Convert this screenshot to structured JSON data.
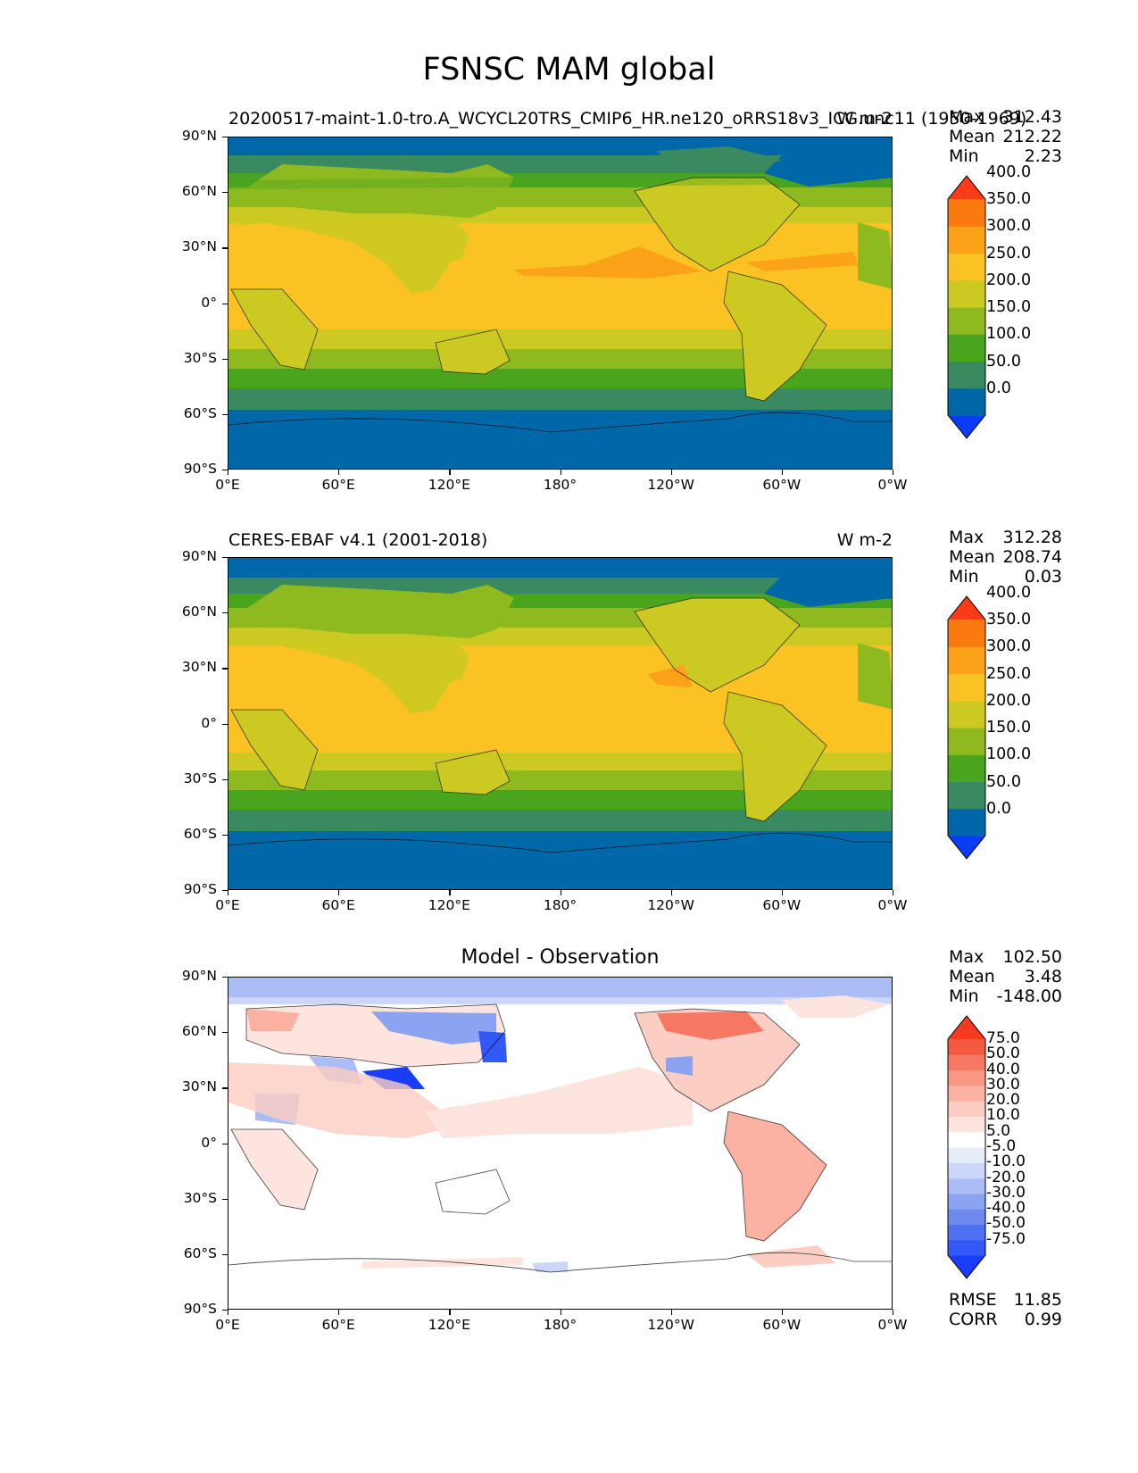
{
  "figure_title": "FSNSC MAM global",
  "map_common": {
    "y_ticks": [
      "90°N",
      "60°N",
      "30°N",
      "0°",
      "30°S",
      "60°S",
      "90°S"
    ],
    "x_ticks": [
      "0°E",
      "60°E",
      "120°E",
      "180°",
      "120°W",
      "60°W",
      "0°W"
    ]
  },
  "panels": [
    {
      "id": "model",
      "title_left": "20200517-maint-1.0-tro.A_WCYCL20TRS_CMIP6_HR.ne120_oRRS18v3_ICG.unc11 (1950-1969)",
      "title_right": "W m-2",
      "stats": [
        {
          "label": "Max",
          "value": "312.43"
        },
        {
          "label": "Mean",
          "value": "212.22"
        },
        {
          "label": "Min",
          "value": "2.23"
        }
      ],
      "colorbar": {
        "colors": [
          "#0a3cfa",
          "#0068a8",
          "#398a60",
          "#4ba41e",
          "#8eb91f",
          "#ccca22",
          "#fbc223",
          "#fba218",
          "#fb7a10",
          "#fc3c18"
        ],
        "labels": [
          "0.0",
          "50.0",
          "100.0",
          "150.0",
          "200.0",
          "250.0",
          "300.0",
          "350.0",
          "400.0"
        ]
      }
    },
    {
      "id": "obs",
      "title_left": "CERES-EBAF v4.1 (2001-2018)",
      "title_right": "W m-2",
      "stats": [
        {
          "label": "Max",
          "value": "312.28"
        },
        {
          "label": "Mean",
          "value": "208.74"
        },
        {
          "label": "Min",
          "value": "0.03"
        }
      ],
      "colorbar": {
        "colors": [
          "#0a3cfa",
          "#0068a8",
          "#398a60",
          "#4ba41e",
          "#8eb91f",
          "#ccca22",
          "#fbc223",
          "#fba218",
          "#fb7a10",
          "#fc3c18"
        ],
        "labels": [
          "0.0",
          "50.0",
          "100.0",
          "150.0",
          "200.0",
          "250.0",
          "300.0",
          "350.0",
          "400.0"
        ]
      }
    },
    {
      "id": "diff",
      "title_center": "Model - Observation",
      "stats": [
        {
          "label": "Max",
          "value": "102.50"
        },
        {
          "label": "Mean",
          "value": "3.48"
        },
        {
          "label": "Min",
          "value": "-148.00"
        }
      ],
      "colorbar": {
        "colors": [
          "#1a3dfa",
          "#3358f8",
          "#4f70f0",
          "#6d89ee",
          "#8ca3f1",
          "#abbdf4",
          "#cbd6f8",
          "#e7ecfb",
          "#ffffff",
          "#fde4de",
          "#fccdc2",
          "#fbb2a3",
          "#f99684",
          "#f67862",
          "#f45a42",
          "#f63a1f"
        ],
        "labels": [
          "-75.0",
          "-50.0",
          "-40.0",
          "-30.0",
          "-20.0",
          "-10.0",
          "-5.0",
          "5.0",
          "10.0",
          "20.0",
          "30.0",
          "40.0",
          "50.0",
          "75.0"
        ]
      },
      "metrics": [
        {
          "label": "RMSE",
          "value": "11.85"
        },
        {
          "label": "CORR",
          "value": "0.99"
        }
      ]
    }
  ]
}
